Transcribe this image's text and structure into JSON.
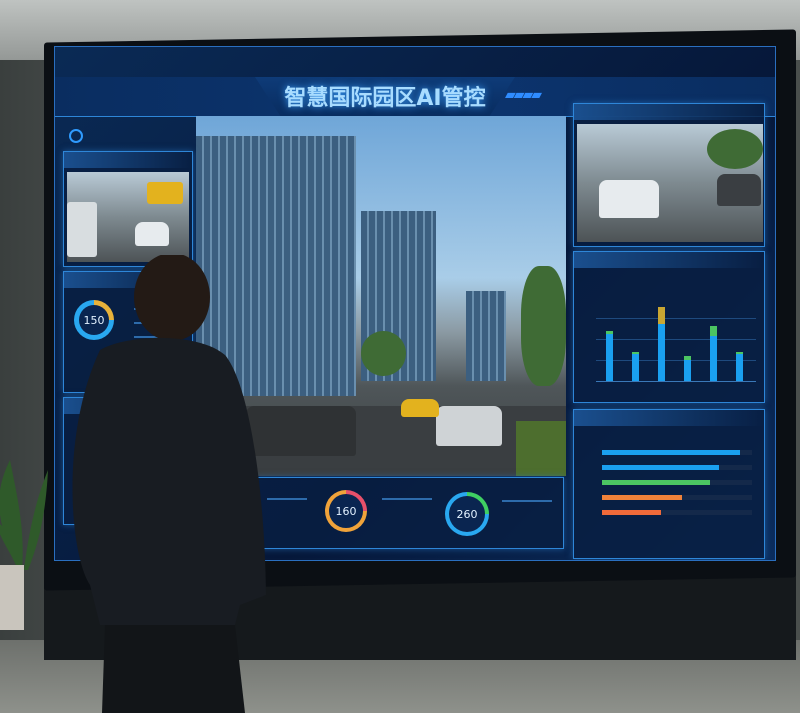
{
  "screen": {
    "title": "智慧国际园区AI管控",
    "title_decor_icon": "stripes-icon",
    "logo_icon": "circle-logo-icon",
    "accent_color": "#2e86d8",
    "gauges": [
      {
        "value": "150",
        "colors": [
          "#29a8f0",
          "#e8b23a"
        ]
      },
      {
        "value": "160",
        "colors": [
          "#f0a33a",
          "#e8506a"
        ]
      },
      {
        "value": "260",
        "colors": [
          "#29a8f0",
          "#3fcf62"
        ]
      }
    ],
    "bar_chart": {
      "series_colors": [
        "#1aa0f0",
        "#4bc562",
        "#c9a632"
      ],
      "bars": [
        {
          "base": 0.56,
          "top": 0.03,
          "top_color": "#4bc562"
        },
        {
          "base": 0.32,
          "top": 0.03,
          "top_color": "#4bc562"
        },
        {
          "base": 0.68,
          "top": 0.2,
          "top_color": "#c9a632"
        },
        {
          "base": 0.25,
          "top": 0.05,
          "top_color": "#4bc562"
        },
        {
          "base": 0.53,
          "top": 0.13,
          "top_color": "#4bc562"
        },
        {
          "base": 0.32,
          "top": 0.02,
          "top_color": "#4bc562"
        }
      ]
    },
    "hbar_chart": [
      {
        "value": 0.92,
        "color": "#1aa0f0"
      },
      {
        "value": 0.78,
        "color": "#1aa0f0"
      },
      {
        "value": 0.72,
        "color": "#4bc562"
      },
      {
        "value": 0.53,
        "color": "#f0823a"
      },
      {
        "value": 0.39,
        "color": "#f06a3a"
      }
    ]
  }
}
